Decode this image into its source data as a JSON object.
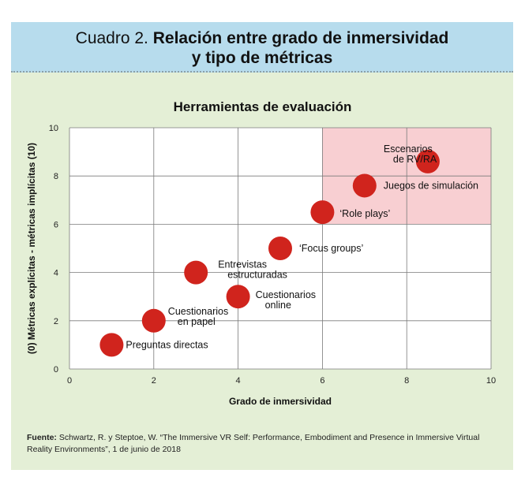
{
  "header": {
    "prefix": "Cuadro 2.",
    "title_line1": "Relación entre grado de inmersividad",
    "title_line2": "y tipo de métricas"
  },
  "chart_data": {
    "type": "scatter",
    "title": "Herramientas de evaluación",
    "xlabel": "Grado de inmersividad",
    "ylabel": "(0) Métricas explícitas - métricas implícitas (10)",
    "xlim": [
      0,
      10
    ],
    "ylim": [
      0,
      10
    ],
    "x_ticks": [
      "0",
      "2",
      "4",
      "6",
      "8",
      "10"
    ],
    "y_ticks": [
      "0",
      "2",
      "4",
      "6",
      "8",
      "10"
    ],
    "grid": true,
    "highlight_region": {
      "x": [
        6,
        10
      ],
      "y": [
        6,
        10
      ],
      "color": "#f8cfd2"
    },
    "point_color": "#d0241d",
    "points": [
      {
        "x": 1,
        "y": 1,
        "label": [
          "Preguntas directas"
        ]
      },
      {
        "x": 2,
        "y": 2,
        "label": [
          "Cuestionarios",
          "en papel"
        ]
      },
      {
        "x": 3,
        "y": 4,
        "label": [
          "Entrevistas",
          "estructuradas"
        ]
      },
      {
        "x": 4,
        "y": 3,
        "label": [
          "Cuestionarios",
          "online"
        ]
      },
      {
        "x": 5,
        "y": 5,
        "label": [
          "‘Focus groups’"
        ]
      },
      {
        "x": 6,
        "y": 6.5,
        "label": [
          "‘Role plays’"
        ]
      },
      {
        "x": 7,
        "y": 7.6,
        "label": [
          "Juegos de simulación"
        ]
      },
      {
        "x": 8.5,
        "y": 8.6,
        "label": [
          "Escenarios",
          "de RV/RA"
        ]
      }
    ]
  },
  "source": {
    "label": "Fuente:",
    "text": "Schwartz, R. y Steptoe, W. “The Immersive VR Self: Performance, Embodiment and Presence in Immersive Virtual Reality Environments”, 1 de junio de 2018"
  }
}
